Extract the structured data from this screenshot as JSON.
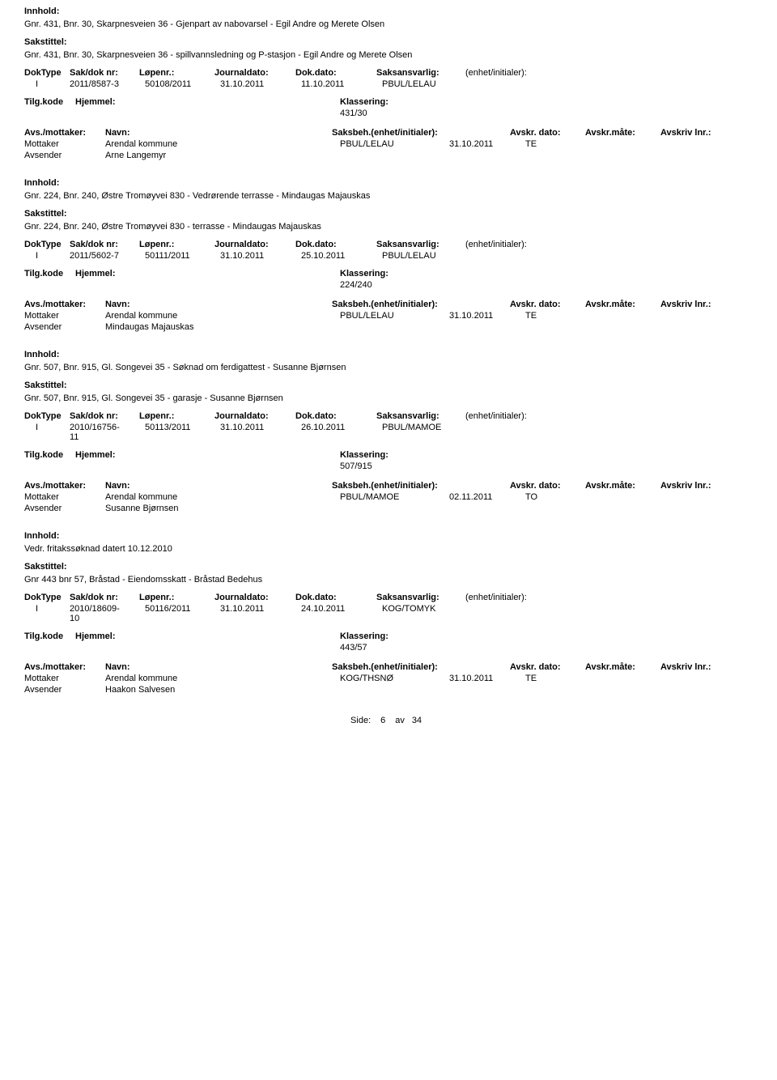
{
  "labels": {
    "innhold": "Innhold:",
    "sakstittel": "Sakstittel:",
    "doktype": "DokType",
    "sakdok": "Sak/dok nr:",
    "lopenr": "Løpenr.:",
    "journaldato": "Journaldato:",
    "dokdato": "Dok.dato:",
    "saksansvarlig": "Saksansvarlig:",
    "enhet": "(enhet/initialer):",
    "tilgkode": "Tilg.kode",
    "hjemmel": "Hjemmel:",
    "klassering": "Klassering:",
    "avsmottaker": "Avs./mottaker:",
    "navn": "Navn:",
    "saksbeh": "Saksbeh.(enhet/initialer):",
    "avskrdato": "Avskr. dato:",
    "avskrmate": "Avskr.måte:",
    "avskrlnr": "Avskriv lnr.:",
    "mottaker": "Mottaker",
    "avsender": "Avsender"
  },
  "records": [
    {
      "innhold": "Gnr. 431, Bnr. 30, Skarpnesveien 36 - Gjenpart av nabovarsel - Egil Andre og Merete Olsen",
      "sakstittel": "Gnr. 431, Bnr. 30, Skarpnesveien 36 - spillvannsledning og P-stasjon - Egil Andre og Merete Olsen",
      "doktype": "I",
      "sakdok": "2011/8587-3",
      "sakdok2": "",
      "lopenr": "50108/2011",
      "jdato": "31.10.2011",
      "ddato": "11.10.2011",
      "saksans": "PBUL/LELAU",
      "klassering": "431/30",
      "mottaker_navn": "Arendal kommune",
      "mottaker_saksbeh": "PBUL/LELAU",
      "mottaker_dato": "31.10.2011",
      "mottaker_mate": "TE",
      "avsender_navn": "Arne Langemyr"
    },
    {
      "innhold": "Gnr. 224, Bnr. 240, Østre Tromøyvei 830 - Vedrørende terrasse - Mindaugas Majauskas",
      "sakstittel": "Gnr. 224, Bnr. 240, Østre Tromøyvei 830 - terrasse - Mindaugas Majauskas",
      "doktype": "I",
      "sakdok": "2011/5602-7",
      "sakdok2": "",
      "lopenr": "50111/2011",
      "jdato": "31.10.2011",
      "ddato": "25.10.2011",
      "saksans": "PBUL/LELAU",
      "klassering": "224/240",
      "mottaker_navn": "Arendal kommune",
      "mottaker_saksbeh": "PBUL/LELAU",
      "mottaker_dato": "31.10.2011",
      "mottaker_mate": "TE",
      "avsender_navn": "Mindaugas Majauskas"
    },
    {
      "innhold": "Gnr. 507, Bnr. 915, Gl. Songevei 35 - Søknad om ferdigattest - Susanne Bjørnsen",
      "sakstittel": "Gnr. 507, Bnr. 915, Gl. Songevei 35 - garasje - Susanne Bjørnsen",
      "doktype": "I",
      "sakdok": "2010/16756-",
      "sakdok2": "11",
      "lopenr": "50113/2011",
      "jdato": "31.10.2011",
      "ddato": "26.10.2011",
      "saksans": "PBUL/MAMOE",
      "klassering": "507/915",
      "mottaker_navn": "Arendal kommune",
      "mottaker_saksbeh": "PBUL/MAMOE",
      "mottaker_dato": "02.11.2011",
      "mottaker_mate": "TO",
      "avsender_navn": "Susanne Bjørnsen"
    },
    {
      "innhold": "Vedr. fritakssøknad datert 10.12.2010",
      "sakstittel": "Gnr 443 bnr 57, Bråstad - Eiendomsskatt - Bråstad Bedehus",
      "doktype": "I",
      "sakdok": "2010/18609-",
      "sakdok2": "10",
      "lopenr": "50116/2011",
      "jdato": "31.10.2011",
      "ddato": "24.10.2011",
      "saksans": "KOG/TOMYK",
      "klassering": "443/57",
      "mottaker_navn": "Arendal kommune",
      "mottaker_saksbeh": "KOG/THSNØ",
      "mottaker_dato": "31.10.2011",
      "mottaker_mate": "TE",
      "avsender_navn": "Haakon Salvesen"
    }
  ],
  "footer": {
    "side": "Side:",
    "page": "6",
    "av": "av",
    "total": "34"
  }
}
